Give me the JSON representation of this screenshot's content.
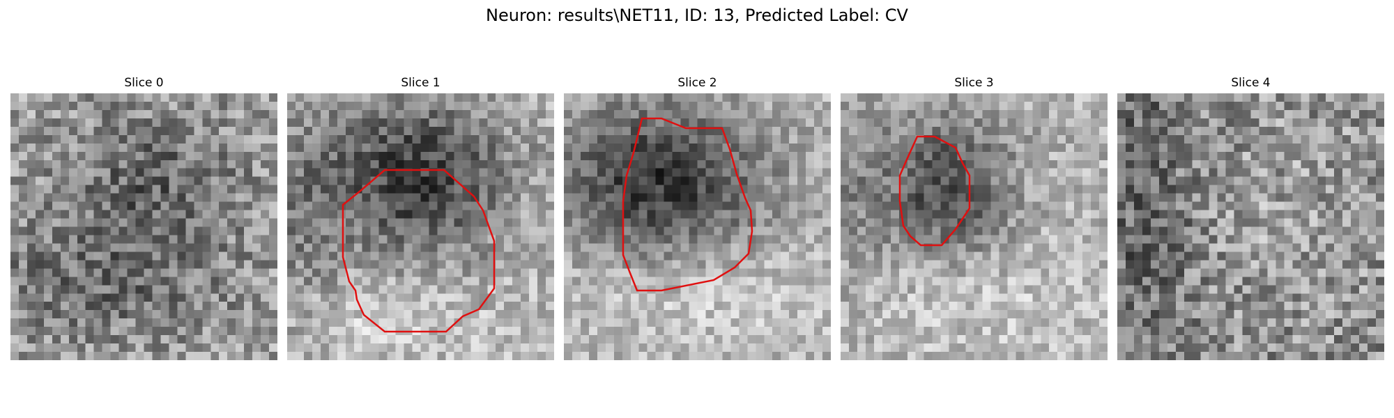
{
  "figure": {
    "title": "Neuron: results\\NET11, ID: 13, Predicted Label: CV"
  },
  "panels": [
    {
      "title": "Slice 0",
      "contour": false
    },
    {
      "title": "Slice 1",
      "contour": true
    },
    {
      "title": "Slice 2",
      "contour": true
    },
    {
      "title": "Slice 3",
      "contour": true
    },
    {
      "title": "Slice 4",
      "contour": false
    }
  ],
  "image": {
    "grid_size": 32,
    "colormap": "gray",
    "contour_color": "#e01010"
  }
}
